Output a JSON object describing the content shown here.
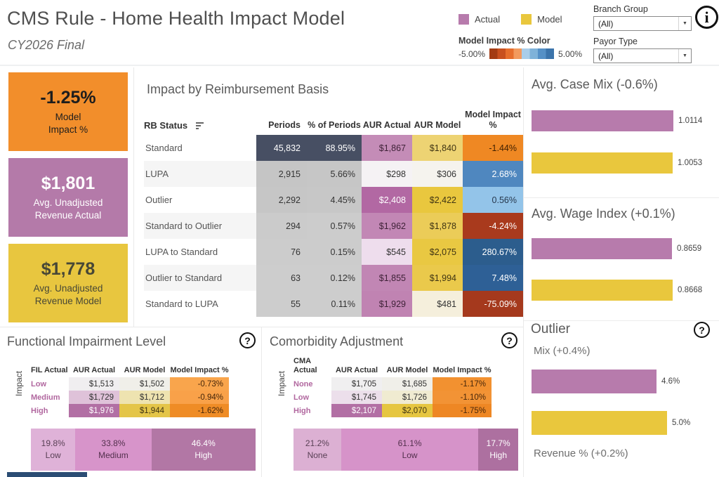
{
  "header": {
    "title": "CMS Rule - Home Health Impact Model",
    "subtitle": "CY2026 Final",
    "legend": {
      "actual_label": "Actual",
      "model_label": "Model",
      "actual_swatch_style": "background:#b77bac",
      "model_swatch_style": "background:#e9c73d"
    },
    "impact_legend": {
      "title": "Model Impact % Color",
      "min_label": "-5.00%",
      "max_label": "5.00%",
      "gradient_style": "background:linear-gradient(to right,#a33b13 0%,#a33b13 12.5%,#c8501f 12.5%,#c8501f 25%,#e66e2d 25%,#e66e2d 37.5%,#f29a5e 37.5%,#f29a5e 50%,#a9cde9 50%,#a9cde9 62.5%,#7fb2d9 62.5%,#7fb2d9 75%,#5590c6 75%,#5590c6 87.5%,#3b74ab 87.5%,#3b74ab 100%)"
    },
    "filters": [
      {
        "label": "Branch Group",
        "value": "(All)"
      },
      {
        "label": "Payor Type",
        "value": "(All)"
      }
    ],
    "icons": {
      "info": "i",
      "help": "?",
      "caret": "▼"
    }
  },
  "kpis": [
    {
      "value": "-1.25%",
      "label1": "Model",
      "label2": "Impact %",
      "style": "background:#f28e2b;color:#1d1d1d"
    },
    {
      "value": "$1,801",
      "label1": "Avg. Unadjusted",
      "label2": "Revenue Actual",
      "style": "background:#b47aa9;color:#ffffff"
    },
    {
      "value": "$1,778",
      "label1": "Avg. Unadjusted",
      "label2": "Revenue Model",
      "style": "background:#e8c63f;color:#474736"
    }
  ],
  "main_table": {
    "title": "Impact by Reimbursement Basis",
    "columns": [
      "RB Status",
      "Periods",
      "% of Periods",
      "AUR Actual",
      "AUR Model",
      "Model Impact %"
    ],
    "rows": [
      {
        "status": "Standard",
        "status_style": "",
        "periods": "45,832",
        "periods_style": "background:#474f63;color:#ffffff",
        "pct": "88.95%",
        "pct_style": "background:#474f63;color:#ffffff",
        "aur_actual": "$1,867",
        "aur_actual_style": "background:#c48cb7;color:#3f2238",
        "aur_model": "$1,840",
        "aur_model_style": "background:#edd373;color:#3f3413",
        "impact": "-1.44%",
        "impact_style": "background:#ef8823;color:#402000"
      },
      {
        "status": "LUPA",
        "status_style": "background:#f5f5f5",
        "periods": "2,915",
        "periods_style": "background:#c5c5c5",
        "pct": "5.66%",
        "pct_style": "background:#c6c6c6",
        "aur_actual": "$298",
        "aur_actual_style": "background:#f5f2f4",
        "aur_model": "$306",
        "aur_model_style": "background:#f5f3ee",
        "impact": "2.68%",
        "impact_style": "background:#4f87bf;color:#ffffff"
      },
      {
        "status": "Outlier",
        "status_style": "",
        "periods": "2,292",
        "periods_style": "background:#c6c6c6",
        "pct": "4.45%",
        "pct_style": "background:#c7c7c7",
        "aur_actual": "$2,408",
        "aur_actual_style": "background:#b268a3;color:#ffffff",
        "aur_model": "$2,422",
        "aur_model_style": "background:#e9c73e;color:#3f3413",
        "impact": "0.56%",
        "impact_style": "background:#93c4e9;color:#27384d"
      },
      {
        "status": "Standard to Outlier",
        "status_style": "background:#f5f5f5",
        "periods": "294",
        "periods_style": "background:#cbcbcb",
        "pct": "0.57%",
        "pct_style": "background:#cccccc",
        "aur_actual": "$1,962",
        "aur_actual_style": "background:#c287b5;color:#3f2238",
        "aur_model": "$1,878",
        "aur_model_style": "background:#ebcc58;color:#3f3413",
        "impact": "-4.24%",
        "impact_style": "background:#a93a1d;color:#ffffff"
      },
      {
        "status": "LUPA to Standard",
        "status_style": "",
        "periods": "76",
        "periods_style": "background:#cccccc",
        "pct": "0.15%",
        "pct_style": "background:#cccccc",
        "aur_actual": "$545",
        "aur_actual_style": "background:#eedded",
        "aur_model": "$2,075",
        "aur_model_style": "background:#e9c842;color:#3f3413",
        "impact": "280.67%",
        "impact_style": "background:#2c5d8d;color:#ffffff"
      },
      {
        "status": "Outlier to Standard",
        "status_style": "background:#f5f5f5",
        "periods": "63",
        "periods_style": "background:#cdcdcd",
        "pct": "0.12%",
        "pct_style": "background:#cdcdcd",
        "aur_actual": "$1,855",
        "aur_actual_style": "background:#c186b4;color:#3f2238",
        "aur_model": "$1,994",
        "aur_model_style": "background:#eac94b;color:#3f3413",
        "impact": "7.48%",
        "impact_style": "background:#2e6096;color:#ffffff"
      },
      {
        "status": "Standard to LUPA",
        "status_style": "",
        "periods": "55",
        "periods_style": "background:#cdcdcd",
        "pct": "0.11%",
        "pct_style": "background:#cdcdcd",
        "aur_actual": "$1,929",
        "aur_actual_style": "background:#c083b2;color:#3f2238",
        "aur_model": "$481",
        "aur_model_style": "background:#f5efdc",
        "impact": "-75.09%",
        "impact_style": "background:#a5391d;color:#ffffff"
      }
    ]
  },
  "fil_section": {
    "title": "Functional Impairment Level",
    "axis_label": "Impact",
    "columns": [
      "FIL Actual",
      "AUR Actual",
      "AUR Model",
      "Model Impact %"
    ],
    "rows": [
      {
        "label": "Low",
        "a": "$1,513",
        "a_style": "background:#f0eef0",
        "m": "$1,502",
        "m_style": "background:#f0efe9",
        "i": "-0.73%",
        "i_style": "background:#f9a54c;color:#46260a"
      },
      {
        "label": "Medium",
        "a": "$1,729",
        "a_style": "background:#dfc2d9",
        "m": "$1,712",
        "m_style": "background:#eee3b0",
        "i": "-0.94%",
        "i_style": "background:#f9a149;color:#46260a"
      },
      {
        "label": "High",
        "a": "$1,976",
        "a_style": "background:#b26fa4;color:#ffffff",
        "m": "$1,944",
        "m_style": "background:#e4c548;color:#3f3413",
        "i": "-1.62%",
        "i_style": "background:#ef8c26;color:#46260a"
      }
    ],
    "dist": [
      {
        "value": "19.8%",
        "label": "Low",
        "style": "width:19.8%;background:#dfb2d8;color:#5a4156"
      },
      {
        "value": "33.8%",
        "label": "Medium",
        "style": "width:33.8%;background:#d794ca;color:#53304d"
      },
      {
        "value": "46.4%",
        "label": "High",
        "style": "width:46.4%;background:#b277a5;color:#ffffff"
      }
    ]
  },
  "cma_section": {
    "title": "Comorbidity Adjustment",
    "axis_label": "Impact",
    "columns": [
      "CMA Actual",
      "AUR Actual",
      "AUR Model",
      "Model Impact %"
    ],
    "rows": [
      {
        "label": "None",
        "a": "$1,705",
        "a_style": "background:#f0eff0",
        "m": "$1,685",
        "m_style": "background:#f0efe9",
        "i": "-1.17%",
        "i_style": "background:#f29130;color:#46260a"
      },
      {
        "label": "Low",
        "a": "$1,745",
        "a_style": "background:#ecdfeb",
        "m": "$1,726",
        "m_style": "background:#f0ebd1",
        "i": "-1.10%",
        "i_style": "background:#f29335;color:#46260a"
      },
      {
        "label": "High",
        "a": "$2,107",
        "a_style": "background:#b26fa4;color:#ffffff",
        "m": "$2,070",
        "m_style": "background:#e6c640;color:#3f3413",
        "i": "-1.75%",
        "i_style": "background:#ee8724;color:#46260a"
      }
    ],
    "dist": [
      {
        "value": "21.2%",
        "label": "None",
        "style": "width:21.2%;background:#dcb0d3;color:#5a4156"
      },
      {
        "value": "61.1%",
        "label": "Low",
        "style": "width:61.1%;background:#d693c9;color:#53304d"
      },
      {
        "value": "17.7%",
        "label": "High",
        "style": "width:17.7%;background:#ad70a0;color:#ffffff"
      }
    ]
  },
  "right_panel": {
    "case_mix": {
      "title": "Avg. Case Mix (-0.6%)",
      "actual": {
        "label": "1.0114",
        "style": "width:202px;background:#b77bac"
      },
      "model": {
        "label": "1.0053",
        "style": "width:201px;background:#e9c73d"
      }
    },
    "wage_index": {
      "title": "Avg. Wage Index (+0.1%)",
      "actual": {
        "label": "0.8659",
        "style": "width:200px;background:#b77bac"
      },
      "model": {
        "label": "0.8668",
        "style": "width:201px;background:#e9c73d"
      }
    },
    "outlier": {
      "title": "Outlier",
      "mix_subtitle": "Mix (+0.4%)",
      "revenue_subtitle": "Revenue % (+0.2%)",
      "actual": {
        "label": "4.6%",
        "style": "width:178px;background:#b77bac"
      },
      "model": {
        "label": "5.0%",
        "style": "width:193px;background:#e9c73d"
      }
    }
  },
  "misc": {
    "cutoff_bar_style": "background:#2b4d74"
  },
  "chart_data": [
    {
      "type": "table",
      "title": "Impact by Reimbursement Basis",
      "columns": [
        "RB Status",
        "Periods",
        "% of Periods",
        "AUR Actual",
        "AUR Model",
        "Model Impact %"
      ],
      "rows": [
        [
          "Standard",
          45832,
          "88.95%",
          1867,
          1840,
          "-1.44%"
        ],
        [
          "LUPA",
          2915,
          "5.66%",
          298,
          306,
          "2.68%"
        ],
        [
          "Outlier",
          2292,
          "4.45%",
          2408,
          2422,
          "0.56%"
        ],
        [
          "Standard to Outlier",
          294,
          "0.57%",
          1962,
          1878,
          "-4.24%"
        ],
        [
          "LUPA to Standard",
          76,
          "0.15%",
          545,
          2075,
          "280.67%"
        ],
        [
          "Outlier to Standard",
          63,
          "0.12%",
          1855,
          1994,
          "7.48%"
        ],
        [
          "Standard to LUPA",
          55,
          "0.11%",
          1929,
          481,
          "-75.09%"
        ]
      ],
      "color_encoding": "Model Impact % cells colored on -5% (red/orange) to +5% (blue) diverging scale"
    },
    {
      "type": "bar",
      "orientation": "horizontal",
      "title": "Avg. Case Mix (-0.6%)",
      "categories": [
        "Actual",
        "Model"
      ],
      "values": [
        1.0114,
        1.0053
      ],
      "colors": [
        "#b77bac",
        "#e9c73d"
      ],
      "legend_position": "top"
    },
    {
      "type": "bar",
      "orientation": "horizontal",
      "title": "Avg. Wage Index (+0.1%)",
      "categories": [
        "Actual",
        "Model"
      ],
      "values": [
        0.8659,
        0.8668
      ],
      "colors": [
        "#b77bac",
        "#e9c73d"
      ]
    },
    {
      "type": "bar",
      "orientation": "horizontal",
      "title": "Outlier Mix (+0.4%)",
      "categories": [
        "Actual",
        "Model"
      ],
      "values": [
        4.6,
        5.0
      ],
      "unit": "%",
      "colors": [
        "#b77bac",
        "#e9c73d"
      ],
      "note": "Revenue % (+0.2%) sub-chart cut off below"
    },
    {
      "type": "table",
      "title": "Functional Impairment Level",
      "columns": [
        "FIL Actual",
        "AUR Actual",
        "AUR Model",
        "Model Impact %"
      ],
      "rows": [
        [
          "Low",
          1513,
          1502,
          "-0.73%"
        ],
        [
          "Medium",
          1729,
          1712,
          "-0.94%"
        ],
        [
          "High",
          1976,
          1944,
          "-1.62%"
        ]
      ]
    },
    {
      "type": "bar",
      "subtype": "stacked",
      "orientation": "horizontal",
      "title": "FIL Actual distribution",
      "categories": [
        "Low",
        "Medium",
        "High"
      ],
      "values": [
        19.8,
        33.8,
        46.4
      ],
      "unit": "%"
    },
    {
      "type": "table",
      "title": "Comorbidity Adjustment",
      "columns": [
        "CMA Actual",
        "AUR Actual",
        "AUR Model",
        "Model Impact %"
      ],
      "rows": [
        [
          "None",
          1705,
          1685,
          "-1.17%"
        ],
        [
          "Low",
          1745,
          1726,
          "-1.10%"
        ],
        [
          "High",
          2107,
          2070,
          "-1.75%"
        ]
      ]
    },
    {
      "type": "bar",
      "subtype": "stacked",
      "orientation": "horizontal",
      "title": "CMA Actual distribution",
      "categories": [
        "None",
        "Low",
        "High"
      ],
      "values": [
        21.2,
        61.1,
        17.7
      ],
      "unit": "%"
    },
    {
      "type": "kpi",
      "items": [
        {
          "label": "Model Impact %",
          "value": "-1.25%"
        },
        {
          "label": "Avg. Unadjusted Revenue Actual",
          "value": "$1,801"
        },
        {
          "label": "Avg. Unadjusted Revenue Model",
          "value": "$1,778"
        }
      ]
    }
  ]
}
